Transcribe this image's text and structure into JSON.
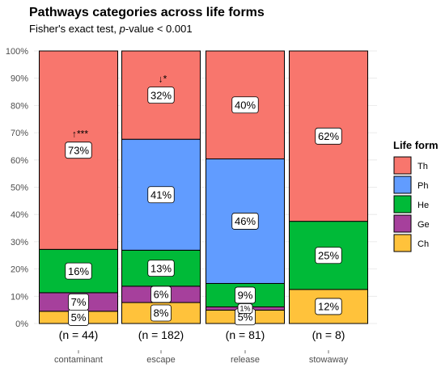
{
  "chart_data": {
    "type": "bar",
    "stacked": "percent",
    "title": "Pathways categories across life forms",
    "subtitle_prefix": "Fisher's exact test, ",
    "subtitle_italic": "p",
    "subtitle_suffix": "-value < 0.001",
    "xlabel": "",
    "ylabel": "",
    "ylim": [
      0,
      100
    ],
    "yticks": [
      "0%",
      "10%",
      "20%",
      "30%",
      "40%",
      "50%",
      "60%",
      "70%",
      "80%",
      "90%",
      "100%"
    ],
    "grid": true,
    "categories": [
      "contaminant",
      "escape",
      "release",
      "stowaway"
    ],
    "counts": [
      "(n = 44)",
      "(n = 182)",
      "(n = 81)",
      "(n = 8)"
    ],
    "series": [
      {
        "name": "Ch",
        "color": "#FFC23B",
        "values": [
          4.5,
          7.7,
          4.9,
          12.5
        ],
        "labels": [
          "5%",
          "8%",
          "5%",
          "12%"
        ]
      },
      {
        "name": "Ge",
        "color": "#A6409C",
        "values": [
          6.8,
          6.0,
          1.2,
          0
        ],
        "labels": [
          "7%",
          "6%",
          "1%",
          ""
        ]
      },
      {
        "name": "He",
        "color": "#00BA38",
        "values": [
          15.9,
          13.2,
          8.6,
          25.0
        ],
        "labels": [
          "16%",
          "13%",
          "9%",
          "25%"
        ]
      },
      {
        "name": "Ph",
        "color": "#619CFF",
        "values": [
          0,
          40.7,
          45.7,
          0
        ],
        "labels": [
          "",
          "41%",
          "46%",
          ""
        ]
      },
      {
        "name": "Th",
        "color": "#F8766D",
        "values": [
          72.8,
          32.4,
          39.6,
          62.5
        ],
        "labels": [
          "73%",
          "32%",
          "40%",
          "62%"
        ]
      }
    ],
    "annotations": [
      {
        "category": "contaminant",
        "series": "Th",
        "text": "↑***"
      },
      {
        "category": "escape",
        "series": "Th",
        "text": "↓*"
      }
    ],
    "legend": {
      "title": "Life form",
      "position": "right",
      "order": [
        "Th",
        "Ph",
        "He",
        "Ge",
        "Ch"
      ]
    }
  }
}
